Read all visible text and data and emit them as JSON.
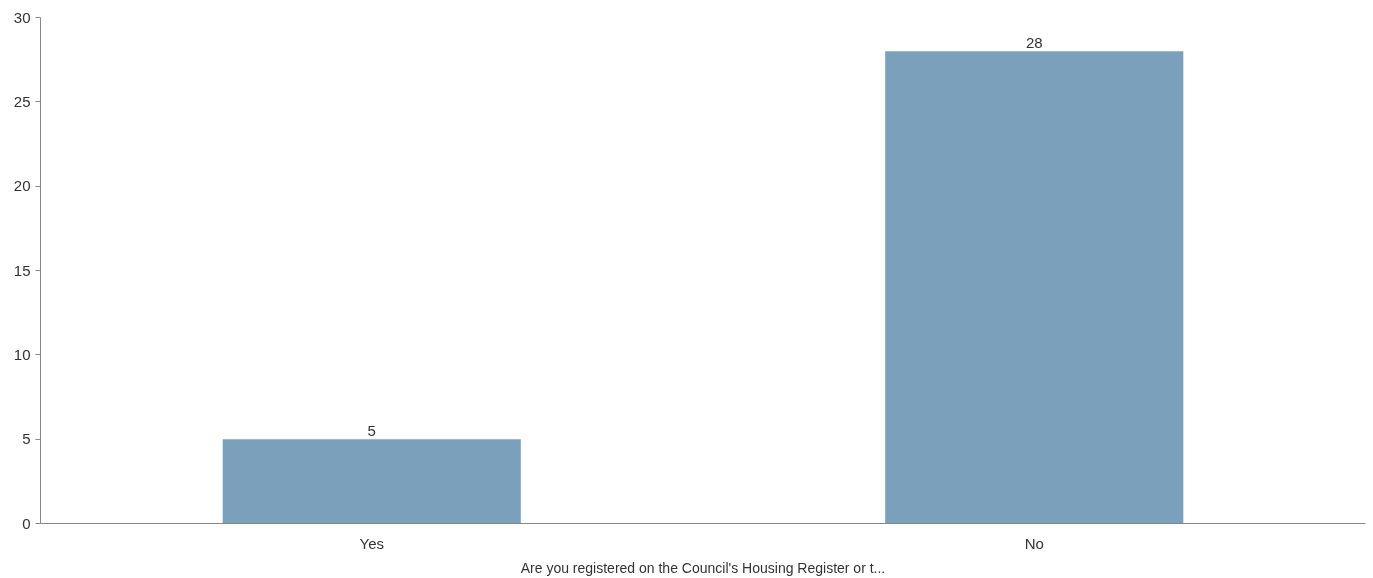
{
  "chart_data": {
    "type": "bar",
    "xlabel": "Are you registered on the Council's Housing Register or t...",
    "categories": [
      "Yes",
      "No"
    ],
    "values": [
      5,
      28
    ],
    "color": "#7ba0bb",
    "ylim": [
      0,
      30
    ],
    "yticks": [
      0,
      5,
      10,
      15,
      20,
      25,
      30
    ],
    "grid": false,
    "data_labels": true
  }
}
